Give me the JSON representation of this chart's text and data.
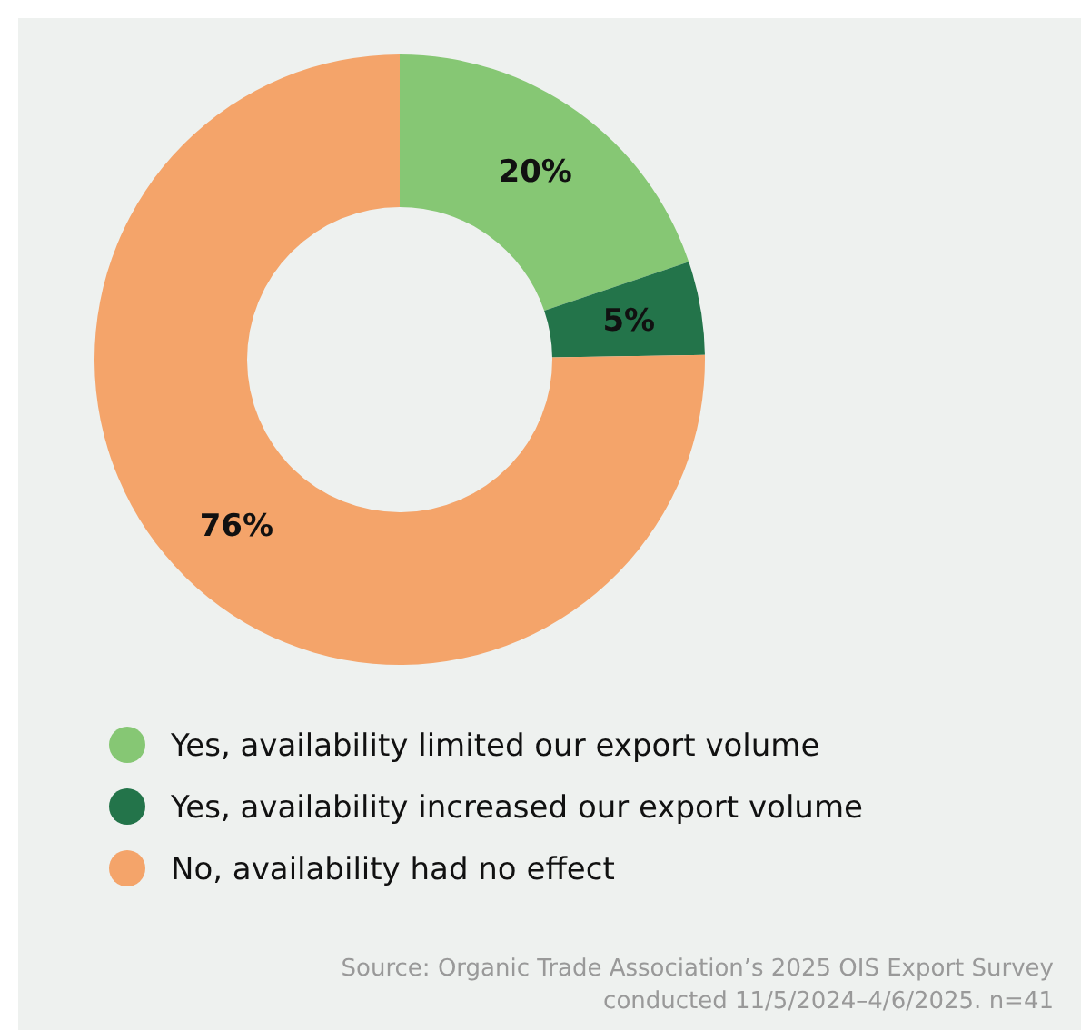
{
  "chart_data": {
    "type": "donut",
    "categories": [
      "Yes, availability limited our export volume",
      "Yes, availability increased our export volume",
      "No, availability had no effect"
    ],
    "values": [
      20,
      5,
      76
    ],
    "colors": [
      "#86c774",
      "#23744a",
      "#f4a46a"
    ],
    "value_labels": [
      "20%",
      "5%",
      "76%"
    ],
    "legend": "bottom",
    "annotations": [
      "Source: Organic Trade Association’s 2025 OIS Export Survey",
      "conducted 11/5/2024–4/6/2025. n=41"
    ]
  }
}
